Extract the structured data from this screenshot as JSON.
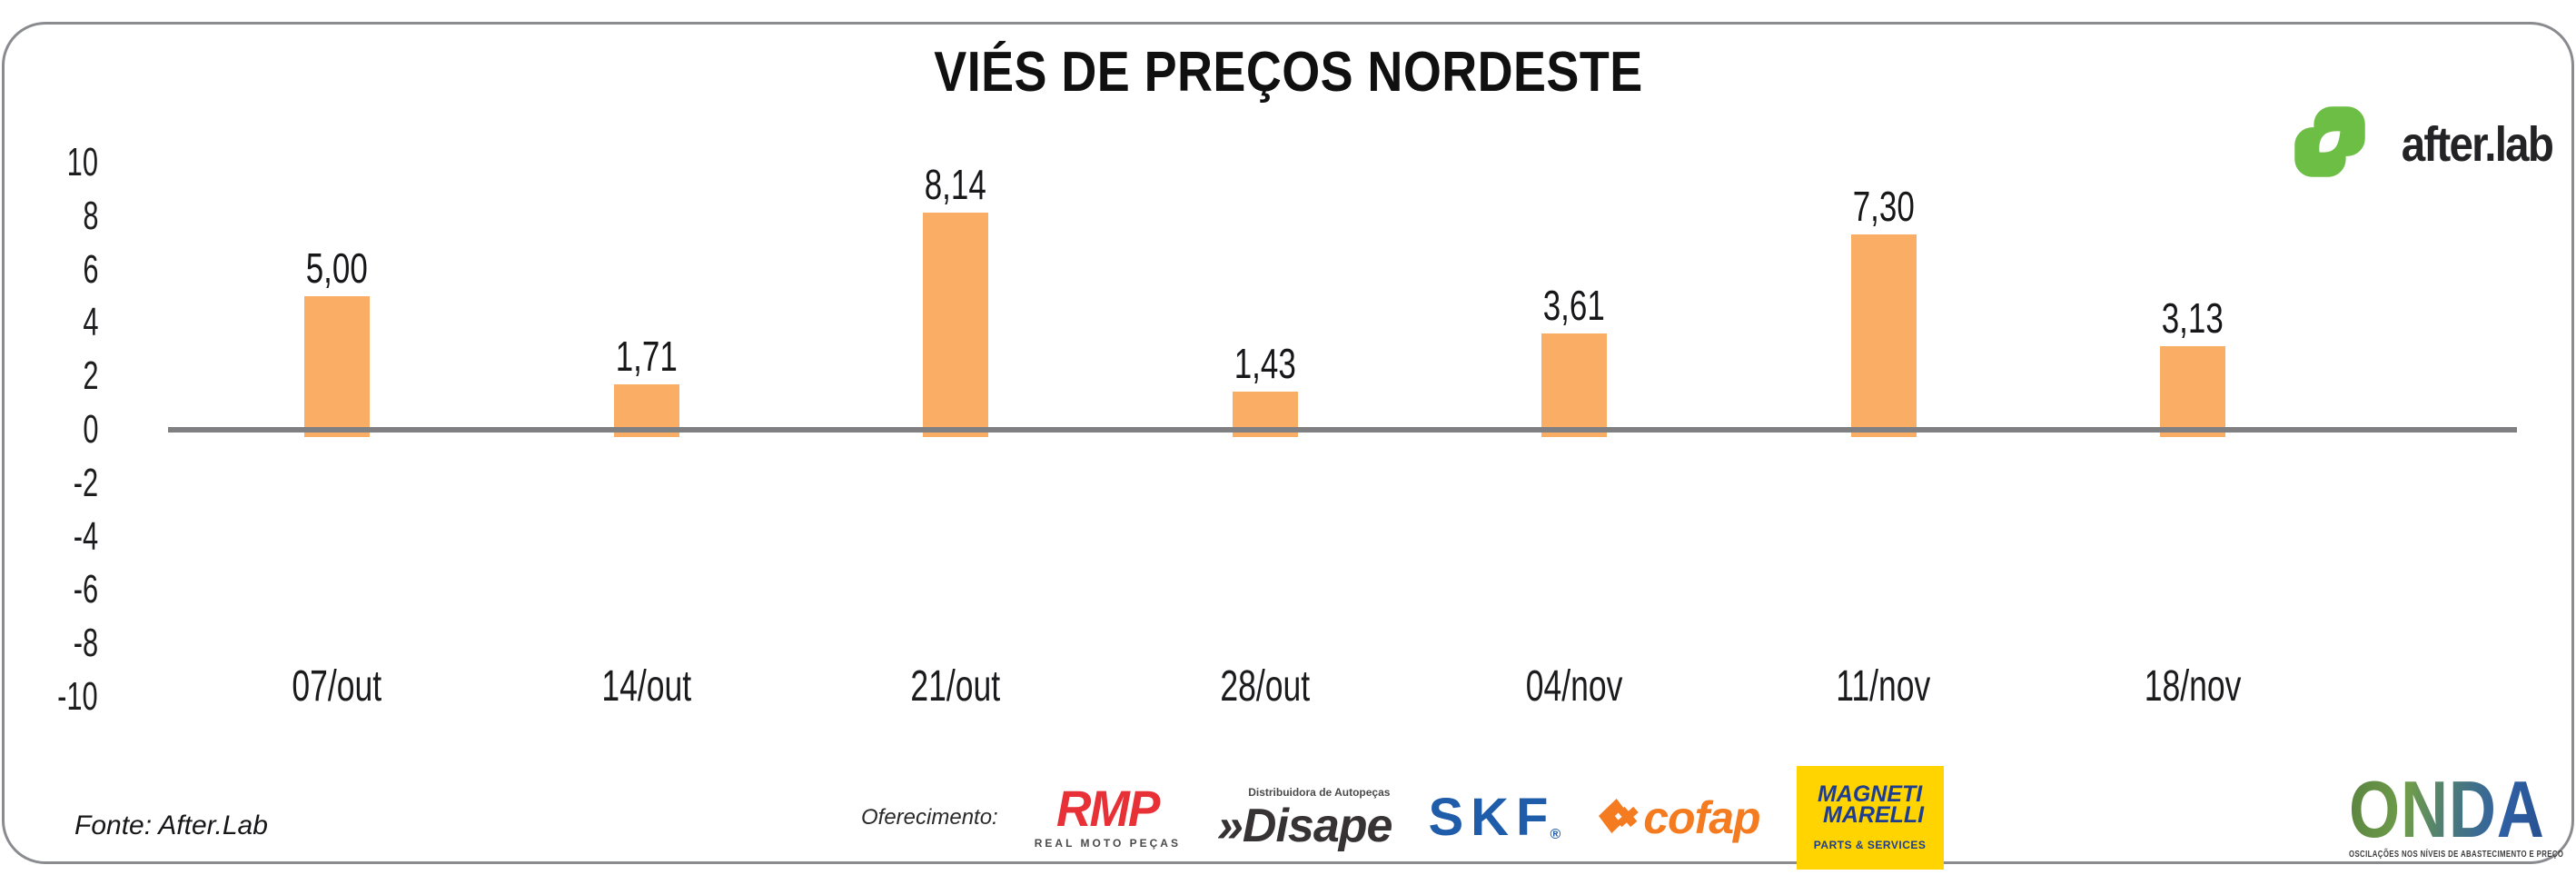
{
  "title": "VIÉS DE PREÇOS NORDESTE",
  "brand": {
    "logo_text": "after.lab"
  },
  "chart_data": {
    "type": "bar",
    "title": "VIÉS DE PREÇOS NORDESTE",
    "categories": [
      "07/out",
      "14/out",
      "21/out",
      "28/out",
      "04/nov",
      "11/nov",
      "18/nov"
    ],
    "values": [
      5.0,
      1.71,
      8.14,
      1.43,
      3.61,
      7.3,
      3.13
    ],
    "value_labels": [
      "5,00",
      "1,71",
      "8,14",
      "1,43",
      "3,61",
      "7,30",
      "3,13"
    ],
    "yticks": [
      10,
      8,
      6,
      4,
      2,
      0,
      -2,
      -4,
      -6,
      -8,
      -10
    ],
    "ylim": [
      -10,
      10
    ],
    "xlabel": "",
    "ylabel": "",
    "grid": false,
    "legend": false,
    "bar_color": "#FAAD64",
    "axis_line_color": "#808083"
  },
  "footer": {
    "source": "Fonte: After.Lab",
    "sponsor_intro": "Oferecimento:"
  },
  "sponsors": {
    "rmp": {
      "name": "RMP",
      "sub": "REAL MOTO PEÇAS"
    },
    "disape": {
      "chevrons": "»",
      "name": "Disape",
      "sup": "Distribuidora de Autopeças"
    },
    "skf": {
      "name": "SKF",
      "reg": "®"
    },
    "cofap": {
      "name": "cofap"
    },
    "magneti": {
      "line1": "MAGNETI",
      "line2": "MARELLI",
      "sub": "PARTS & SERVICES"
    }
  },
  "onda": {
    "name": "ONDA",
    "tagline": "OSCILAÇÕES NOS NÍVEIS DE ABASTECIMENTO E PREÇO"
  },
  "colors": {
    "bar": "#FAAD64",
    "axis_line": "#808083",
    "card_border": "#8A8B8F",
    "afterlab_green": "#6CBE45",
    "rmp_red": "#E73137",
    "disape_dark": "#373335",
    "skf_blue": "#1F5CA9",
    "cofap_orange": "#F47B20",
    "magneti_yellow": "#FFD400",
    "magneti_blue": "#1E3D8F",
    "onda_green": "#5A8440",
    "onda_blue": "#2F60A4"
  }
}
